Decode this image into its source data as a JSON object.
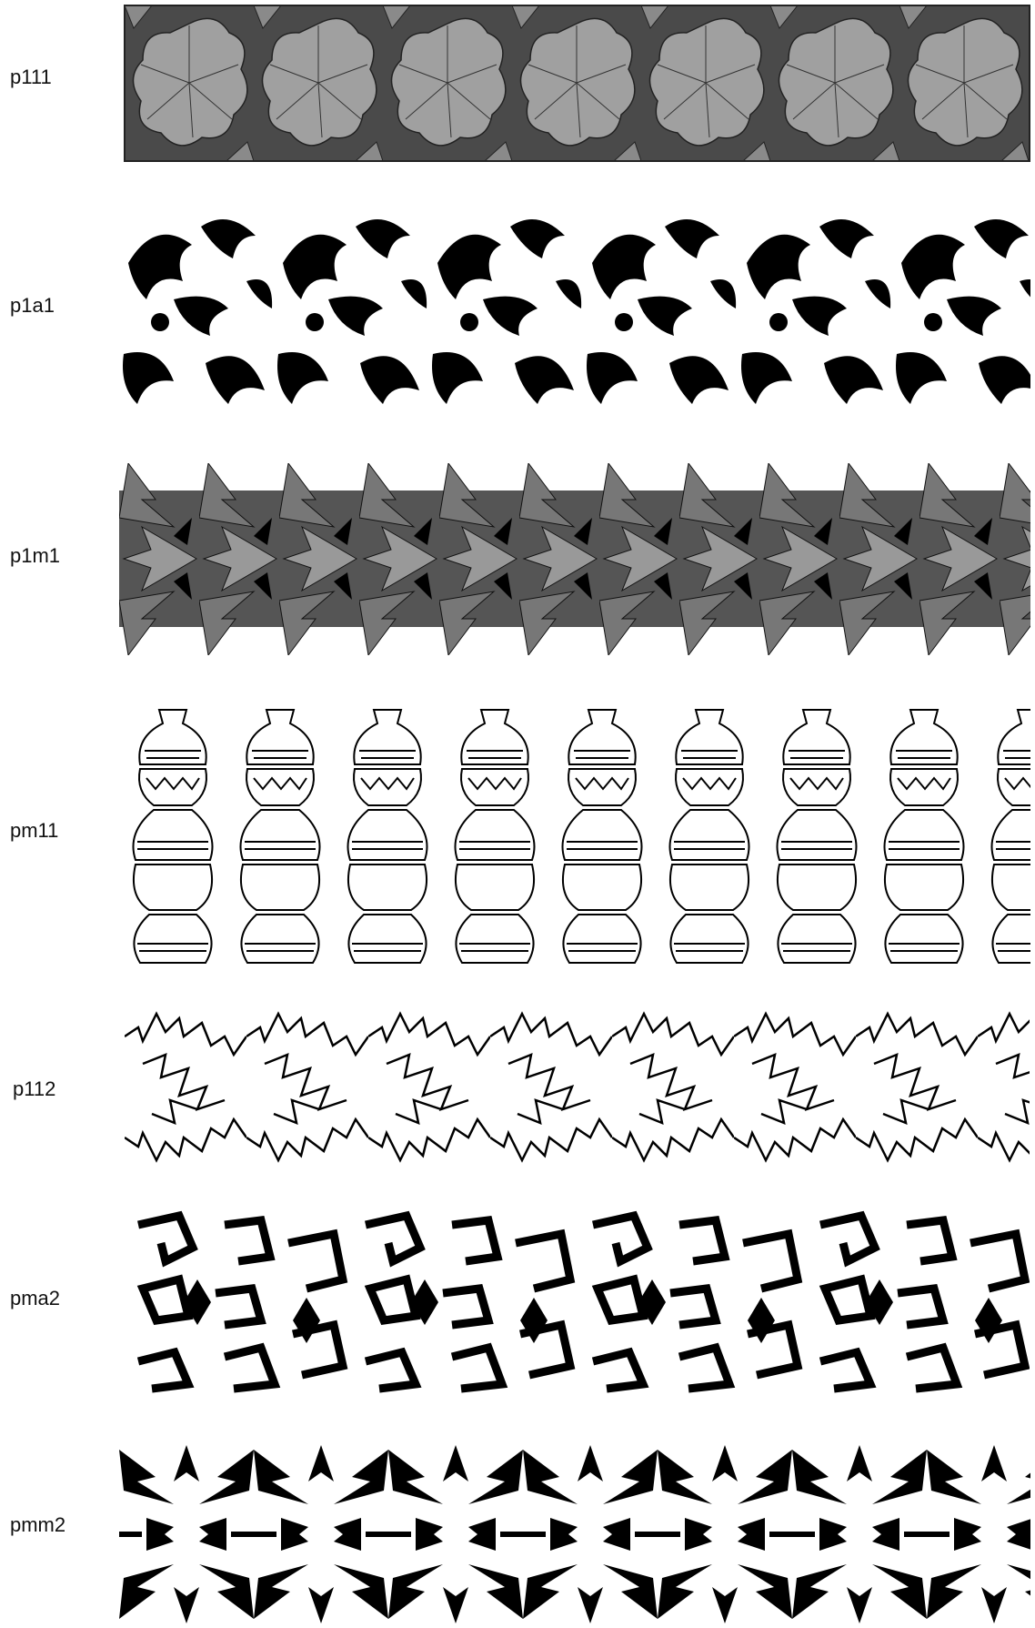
{
  "labels": [
    "p111",
    "p1a1",
    "p1m1",
    "pm11",
    "p112",
    "pma2",
    "pmm2"
  ]
}
